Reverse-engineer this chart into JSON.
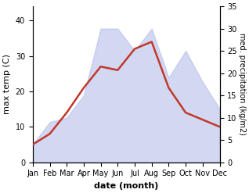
{
  "months": [
    "Jan",
    "Feb",
    "Mar",
    "Apr",
    "May",
    "Jun",
    "Jul",
    "Aug",
    "Sep",
    "Oct",
    "Nov",
    "Dec"
  ],
  "month_indices": [
    1,
    2,
    3,
    4,
    5,
    6,
    7,
    8,
    9,
    10,
    11,
    12
  ],
  "max_temp": [
    5,
    8,
    14,
    21,
    27,
    26,
    32,
    34,
    21,
    14,
    12,
    10
  ],
  "precipitation": [
    4,
    9,
    10,
    15,
    30,
    30,
    25,
    30,
    19,
    25,
    18,
    12
  ],
  "temp_color": "#c0392b",
  "precip_fill_color": "#b0b8e8",
  "precip_fill_alpha": 0.55,
  "temp_ylim": [
    0,
    44
  ],
  "precip_ylim": [
    0,
    35
  ],
  "temp_yticks": [
    0,
    10,
    20,
    30,
    40
  ],
  "precip_yticks": [
    0,
    5,
    10,
    15,
    20,
    25,
    30,
    35
  ],
  "xlabel": "date (month)",
  "ylabel_left": "max temp (C)",
  "ylabel_right": "med. precipitation (kg/m2)",
  "figsize": [
    3.18,
    2.47
  ],
  "dpi": 100
}
